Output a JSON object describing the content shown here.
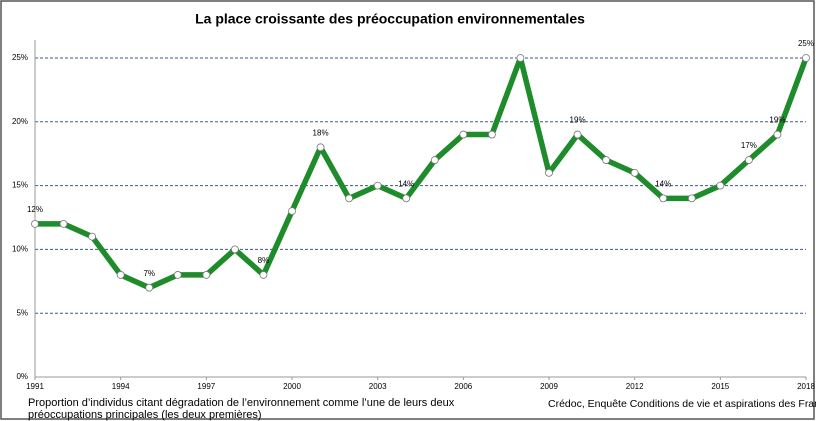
{
  "chart_data": {
    "type": "line",
    "title": "La place croissante des préoccupation environnementales",
    "x": [
      1991,
      1992,
      1993,
      1994,
      1995,
      1996,
      1997,
      1998,
      1999,
      2000,
      2001,
      2002,
      2003,
      2004,
      2005,
      2006,
      2007,
      2008,
      2009,
      2010,
      2011,
      2012,
      2013,
      2014,
      2015,
      2016,
      2017,
      2018
    ],
    "values": [
      12,
      12,
      11,
      8,
      7,
      8,
      8,
      10,
      8,
      13,
      18,
      14,
      15,
      14,
      17,
      19,
      19,
      25,
      16,
      19,
      17,
      16,
      14,
      14,
      15,
      17,
      19,
      25
    ],
    "value_labels": [
      "12%",
      null,
      null,
      null,
      "7%",
      null,
      null,
      null,
      "8%",
      null,
      "18%",
      null,
      null,
      "14%",
      null,
      null,
      null,
      null,
      null,
      "19%",
      null,
      null,
      "14%",
      null,
      null,
      "17%",
      "19%",
      "25%"
    ],
    "color": "#1e8c2a",
    "xlim": [
      1991,
      2018
    ],
    "xticks": [
      1991,
      1994,
      1997,
      2000,
      2003,
      2006,
      2009,
      2012,
      2015,
      2018
    ],
    "ylim": [
      0,
      25
    ],
    "yticks": [
      {
        "value": 0,
        "label": "0%"
      },
      {
        "value": 5,
        "label": "5%"
      },
      {
        "value": 10,
        "label": "10%"
      },
      {
        "value": 15,
        "label": "15%"
      },
      {
        "value": 20,
        "label": "20%"
      },
      {
        "value": 25,
        "label": "25%"
      }
    ],
    "grid": true,
    "caption_lines": [
      "Proportion d’individus citant dégradation de l’environnement comme l’une de leurs deux",
      "préoccupations principales (les deux premières)"
    ],
    "source": "Crédoc, Enquête Conditions de vie et aspirations des Français"
  }
}
